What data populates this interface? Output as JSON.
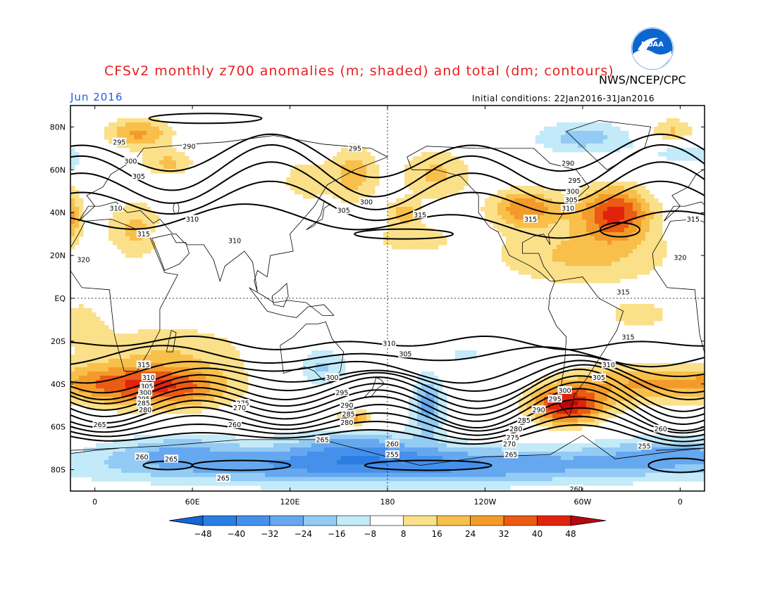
{
  "header": {
    "title": "CFSv2 monthly z700 anomalies (m; shaded) and total (dm; contours)",
    "agency": "NWS/NCEP/CPC",
    "month": "Jun 2016",
    "initial_conditions": "Initial conditions: 22Jan2016-31Jan2016",
    "logo_text": "NOAA"
  },
  "axes": {
    "lat_labels": [
      "80N",
      "60N",
      "40N",
      "20N",
      "EQ",
      "20S",
      "40S",
      "60S",
      "80S"
    ],
    "lon_labels": [
      "0",
      "60E",
      "120E",
      "180",
      "120W",
      "60W",
      "0"
    ]
  },
  "contour_labels": [
    {
      "text": "295",
      "lon": 15,
      "lat": 73
    },
    {
      "text": "300",
      "lon": 22,
      "lat": 64
    },
    {
      "text": "305",
      "lon": 27,
      "lat": 57
    },
    {
      "text": "310",
      "lon": 13,
      "lat": 42
    },
    {
      "text": "315",
      "lon": 30,
      "lat": 30
    },
    {
      "text": "320",
      "lon": -7,
      "lat": 18
    },
    {
      "text": "290",
      "lon": 58,
      "lat": 71
    },
    {
      "text": "295",
      "lon": 160,
      "lat": 70
    },
    {
      "text": "310",
      "lon": 60,
      "lat": 37
    },
    {
      "text": "310",
      "lon": 86,
      "lat": 27
    },
    {
      "text": "300",
      "lon": 167,
      "lat": 45
    },
    {
      "text": "305",
      "lon": 153,
      "lat": 41
    },
    {
      "text": "315",
      "lon": 200,
      "lat": 39
    },
    {
      "text": "315",
      "lon": 268,
      "lat": 37
    },
    {
      "text": "290",
      "lon": 291,
      "lat": 63
    },
    {
      "text": "295",
      "lon": 295,
      "lat": 55
    },
    {
      "text": "300",
      "lon": 294,
      "lat": 50
    },
    {
      "text": "305",
      "lon": 293,
      "lat": 46
    },
    {
      "text": "310",
      "lon": 291,
      "lat": 42
    },
    {
      "text": "315",
      "lon": 368,
      "lat": 37
    },
    {
      "text": "320",
      "lon": 360,
      "lat": 19
    },
    {
      "text": "315",
      "lon": 325,
      "lat": 3
    },
    {
      "text": "315",
      "lon": 328,
      "lat": -18
    },
    {
      "text": "310",
      "lon": 181,
      "lat": -21
    },
    {
      "text": "305",
      "lon": 191,
      "lat": -26
    },
    {
      "text": "310",
      "lon": 316,
      "lat": -31
    },
    {
      "text": "305",
      "lon": 310,
      "lat": -37
    },
    {
      "text": "315",
      "lon": 30,
      "lat": -31
    },
    {
      "text": "310",
      "lon": 33,
      "lat": -37
    },
    {
      "text": "305",
      "lon": 32,
      "lat": -41
    },
    {
      "text": "300",
      "lon": 31,
      "lat": -44
    },
    {
      "text": "295",
      "lon": 30,
      "lat": -47
    },
    {
      "text": "285",
      "lon": 30,
      "lat": -49
    },
    {
      "text": "280",
      "lon": 31,
      "lat": -52
    },
    {
      "text": "300",
      "lon": 146,
      "lat": -37
    },
    {
      "text": "295",
      "lon": 152,
      "lat": -44
    },
    {
      "text": "290",
      "lon": 155,
      "lat": -50
    },
    {
      "text": "285",
      "lon": 156,
      "lat": -54
    },
    {
      "text": "280",
      "lon": 155,
      "lat": -58
    },
    {
      "text": "275",
      "lon": 91,
      "lat": -49
    },
    {
      "text": "270",
      "lon": 89,
      "lat": -51
    },
    {
      "text": "300",
      "lon": 289,
      "lat": -43
    },
    {
      "text": "295",
      "lon": 283,
      "lat": -47
    },
    {
      "text": "290",
      "lon": 273,
      "lat": -52
    },
    {
      "text": "285",
      "lon": 264,
      "lat": -57
    },
    {
      "text": "280",
      "lon": 259,
      "lat": -61
    },
    {
      "text": "275",
      "lon": 257,
      "lat": -65
    },
    {
      "text": "270",
      "lon": 255,
      "lat": -68
    },
    {
      "text": "265",
      "lon": 256,
      "lat": -73
    },
    {
      "text": "265",
      "lon": 3,
      "lat": -59
    },
    {
      "text": "260",
      "lon": 86,
      "lat": -59
    },
    {
      "text": "265",
      "lon": 140,
      "lat": -66
    },
    {
      "text": "260",
      "lon": 183,
      "lat": -68
    },
    {
      "text": "255",
      "lon": 183,
      "lat": -73
    },
    {
      "text": "260",
      "lon": 29,
      "lat": -74
    },
    {
      "text": "265",
      "lon": 47,
      "lat": -75
    },
    {
      "text": "265",
      "lon": 79,
      "lat": -84
    },
    {
      "text": "255",
      "lon": 338,
      "lat": -69
    },
    {
      "text": "260",
      "lon": 348,
      "lat": -61
    },
    {
      "text": "260",
      "lon": 296,
      "lat": -89
    }
  ],
  "colorbar": {
    "labels": [
      "−48",
      "−40",
      "−32",
      "−24",
      "−16",
      "−8",
      "8",
      "16",
      "24",
      "32",
      "40",
      "48"
    ],
    "colors": [
      "#1565d6",
      "#2a7de3",
      "#4590eb",
      "#66a8ef",
      "#93cbf4",
      "#c3eaf8",
      "#ffffff",
      "#fbe08a",
      "#f8c04a",
      "#f39b2a",
      "#ec5a14",
      "#e0230c",
      "#b9070c"
    ]
  },
  "fields": {
    "positive": [
      {
        "lon": 45,
        "lat": -42,
        "amp": 34,
        "rx": 38,
        "ry": 10
      },
      {
        "lon": 0,
        "lat": -40,
        "amp": 22,
        "rx": 35,
        "ry": 9
      },
      {
        "lon": 45,
        "lat": -25,
        "amp": 14,
        "rx": 55,
        "ry": 14
      },
      {
        "lon": 330,
        "lat": -40,
        "amp": 22,
        "rx": 40,
        "ry": 10
      },
      {
        "lon": 385,
        "lat": -40,
        "amp": 22,
        "rx": 35,
        "ry": 9
      },
      {
        "lon": 290,
        "lat": -50,
        "amp": 48,
        "rx": 22,
        "ry": 9
      },
      {
        "lon": 160,
        "lat": -56,
        "amp": 30,
        "rx": 10,
        "ry": 4
      },
      {
        "lon": 320,
        "lat": 40,
        "amp": 42,
        "rx": 22,
        "ry": 12
      },
      {
        "lon": 265,
        "lat": 42,
        "amp": 30,
        "rx": 22,
        "ry": 9
      },
      {
        "lon": 300,
        "lat": 20,
        "amp": 18,
        "rx": 55,
        "ry": 14
      },
      {
        "lon": 210,
        "lat": 58,
        "amp": 18,
        "rx": 22,
        "ry": 12
      },
      {
        "lon": 160,
        "lat": 58,
        "amp": 20,
        "rx": 14,
        "ry": 14
      },
      {
        "lon": 190,
        "lat": 40,
        "amp": 20,
        "rx": 10,
        "ry": 6
      },
      {
        "lon": 195,
        "lat": 28,
        "amp": 12,
        "rx": 28,
        "ry": 8
      },
      {
        "lon": -18,
        "lat": 38,
        "amp": 30,
        "rx": 10,
        "ry": 14
      },
      {
        "lon": 25,
        "lat": 32,
        "amp": 18,
        "rx": 18,
        "ry": 14
      },
      {
        "lon": 27,
        "lat": 77,
        "amp": 26,
        "rx": 20,
        "ry": 7
      },
      {
        "lon": 45,
        "lat": 63,
        "amp": 18,
        "rx": 16,
        "ry": 6
      },
      {
        "lon": 130,
        "lat": 55,
        "amp": 12,
        "rx": 18,
        "ry": 12
      },
      {
        "lon": 355,
        "lat": 78,
        "amp": 18,
        "rx": 14,
        "ry": 6
      },
      {
        "lon": 335,
        "lat": -8,
        "amp": 10,
        "rx": 30,
        "ry": 10
      },
      {
        "lon": -10,
        "lat": -10,
        "amp": 10,
        "rx": 18,
        "ry": 12
      }
    ],
    "negative": [
      {
        "lon": 180,
        "lat": -78,
        "amp": -36,
        "rx": 180,
        "ry": 9
      },
      {
        "lon": 160,
        "lat": -68,
        "amp": -20,
        "rx": 40,
        "ry": 8
      },
      {
        "lon": 360,
        "lat": -72,
        "amp": -20,
        "rx": 50,
        "ry": 8
      },
      {
        "lon": 50,
        "lat": -70,
        "amp": -15,
        "rx": 40,
        "ry": 8
      },
      {
        "lon": 205,
        "lat": -50,
        "amp": -28,
        "rx": 10,
        "ry": 14
      },
      {
        "lon": 140,
        "lat": -32,
        "amp": -18,
        "rx": 16,
        "ry": 9
      },
      {
        "lon": 228,
        "lat": -26,
        "amp": -10,
        "rx": 14,
        "ry": 5
      },
      {
        "lon": 300,
        "lat": 75,
        "amp": -20,
        "rx": 30,
        "ry": 8
      },
      {
        "lon": 365,
        "lat": 68,
        "amp": -12,
        "rx": 30,
        "ry": 6
      },
      {
        "lon": -15,
        "lat": 65,
        "amp": -12,
        "rx": 10,
        "ry": 8
      },
      {
        "lon": 85,
        "lat": 20,
        "amp": -8,
        "rx": 6,
        "ry": 5
      },
      {
        "lon": 38,
        "lat": 30,
        "amp": -8,
        "rx": 4,
        "ry": 4
      }
    ]
  }
}
